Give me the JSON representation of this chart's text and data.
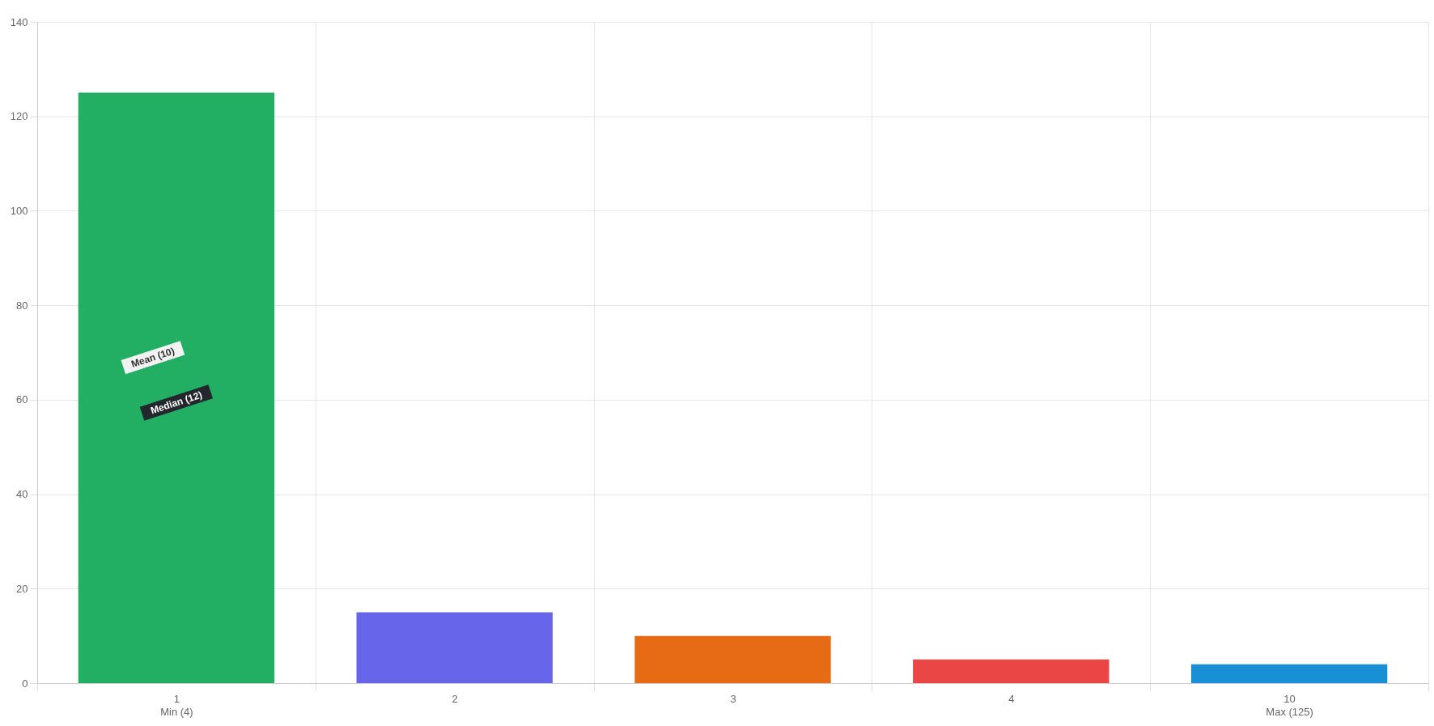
{
  "chart_data": {
    "type": "bar",
    "categories": [
      "1\nMin (4)",
      "2",
      "3",
      "4",
      "10\nMax (125)"
    ],
    "values": [
      125,
      15,
      10,
      5,
      4
    ],
    "colors": [
      "#22ae63",
      "#6765ea",
      "#e76b15",
      "#ea4646",
      "#198fd5"
    ],
    "ylim": [
      0,
      140
    ],
    "yticks": [
      0,
      20,
      40,
      60,
      80,
      100,
      120,
      140
    ],
    "grid": true,
    "annotations": [
      "Mean (10)",
      "Median (12)"
    ]
  }
}
